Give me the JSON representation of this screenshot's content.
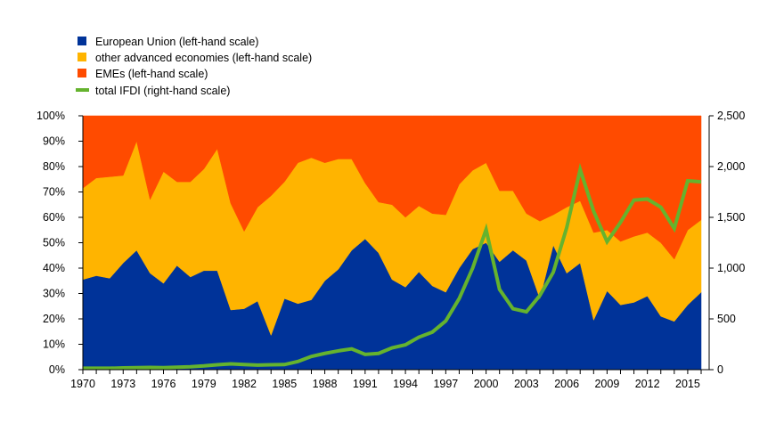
{
  "colors": {
    "eu": "#003399",
    "other_advanced": "#FFB400",
    "emes": "#FF4B00",
    "total_ifdi": "#65B32E",
    "axis": "#000000",
    "background": "#ffffff"
  },
  "chart_data": {
    "type": "area",
    "title": "",
    "legend_position": "top-left",
    "legend": [
      {
        "key": "eu",
        "label": "European Union (left-hand scale)",
        "marker": "square"
      },
      {
        "key": "other_advanced",
        "label": "other advanced economies (left-hand scale)",
        "marker": "square"
      },
      {
        "key": "emes",
        "label": "EMEs (left-hand scale)",
        "marker": "square"
      },
      {
        "key": "total_ifdi",
        "label": "total IFDI (right-hand scale)",
        "marker": "line"
      }
    ],
    "x": [
      1970,
      1971,
      1972,
      1973,
      1974,
      1975,
      1976,
      1977,
      1978,
      1979,
      1980,
      1981,
      1982,
      1983,
      1984,
      1985,
      1986,
      1987,
      1988,
      1989,
      1990,
      1991,
      1992,
      1993,
      1994,
      1995,
      1996,
      1997,
      1998,
      1999,
      2000,
      2001,
      2002,
      2003,
      2004,
      2005,
      2006,
      2007,
      2008,
      2009,
      2010,
      2011,
      2012,
      2013,
      2014,
      2015,
      2016
    ],
    "x_tick_labels": [
      "1970",
      "1973",
      "1976",
      "1979",
      "1982",
      "1985",
      "1988",
      "1991",
      "1994",
      "1997",
      "2000",
      "2003",
      "2006",
      "2009",
      "2012",
      "2015"
    ],
    "x_tick_values": [
      1970,
      1973,
      1976,
      1979,
      1982,
      1985,
      1988,
      1991,
      1994,
      1997,
      2000,
      2003,
      2006,
      2009,
      2012,
      2015
    ],
    "y_left": {
      "range": [
        0,
        100
      ],
      "ticks": [
        0,
        10,
        20,
        30,
        40,
        50,
        60,
        70,
        80,
        90,
        100
      ],
      "tick_labels": [
        "0%",
        "10%",
        "20%",
        "30%",
        "40%",
        "50%",
        "60%",
        "70%",
        "80%",
        "90%",
        "100%"
      ]
    },
    "y_right": {
      "range": [
        0,
        2500
      ],
      "ticks": [
        0,
        500,
        1000,
        1500,
        2000,
        2500
      ],
      "tick_labels": [
        "0",
        "500",
        "1,000",
        "1,500",
        "2,000",
        "2,500"
      ]
    },
    "series": [
      {
        "key": "eu",
        "name": "European Union (left-hand scale)",
        "type": "area",
        "axis": "left",
        "values": [
          35.5,
          37,
          36,
          42,
          47,
          38,
          34,
          41,
          36.5,
          39,
          39,
          23.5,
          24,
          27,
          13.5,
          28,
          26,
          27.5,
          35,
          39.5,
          47,
          51.5,
          46,
          35.5,
          32.5,
          38.5,
          33,
          30.5,
          40,
          47.5,
          50,
          42.5,
          47,
          43,
          28,
          49,
          38,
          42,
          19.5,
          31,
          25.5,
          26.5,
          29,
          21,
          19,
          25.5,
          30.5
        ]
      },
      {
        "key": "other_advanced",
        "name": "other advanced economies (left-hand scale)",
        "type": "area",
        "axis": "left",
        "values": [
          36,
          38.5,
          40,
          34.5,
          43,
          29,
          44,
          33,
          37.5,
          40,
          48,
          42,
          30.5,
          37,
          55,
          46,
          55.5,
          56,
          46.5,
          43.5,
          36,
          22,
          20,
          29.5,
          27.5,
          26,
          28.5,
          30.5,
          33,
          31,
          31.5,
          28,
          23.5,
          18.5,
          30.5,
          12,
          26,
          24.5,
          34.5,
          24,
          25,
          26,
          25,
          29,
          24.5,
          29.5,
          28.5
        ]
      },
      {
        "key": "emes",
        "name": "EMEs (left-hand scale)",
        "type": "area",
        "axis": "left",
        "values": [
          28.5,
          24.5,
          24,
          23.5,
          10,
          33,
          22,
          26,
          26,
          21,
          13,
          34.5,
          45.5,
          36,
          31.5,
          26,
          18.5,
          16.5,
          18.5,
          17,
          17,
          26.5,
          34,
          35,
          40,
          35.5,
          38.5,
          39,
          27,
          21.5,
          18.5,
          29.5,
          29.5,
          38.5,
          41.5,
          39,
          36,
          33.5,
          46,
          45,
          49.5,
          47.5,
          46,
          50,
          56.5,
          45,
          41
        ]
      },
      {
        "key": "total_ifdi",
        "name": "total IFDI (right-hand scale)",
        "type": "line",
        "axis": "right",
        "values": [
          14,
          14,
          14,
          17,
          20,
          22,
          20,
          24,
          29,
          37,
          48,
          57,
          50,
          45,
          48,
          50,
          80,
          130,
          160,
          185,
          205,
          150,
          160,
          215,
          245,
          320,
          370,
          480,
          700,
          1000,
          1380,
          790,
          600,
          570,
          730,
          960,
          1400,
          1970,
          1560,
          1260,
          1450,
          1670,
          1680,
          1600,
          1390,
          1860,
          1850
        ]
      }
    ]
  }
}
